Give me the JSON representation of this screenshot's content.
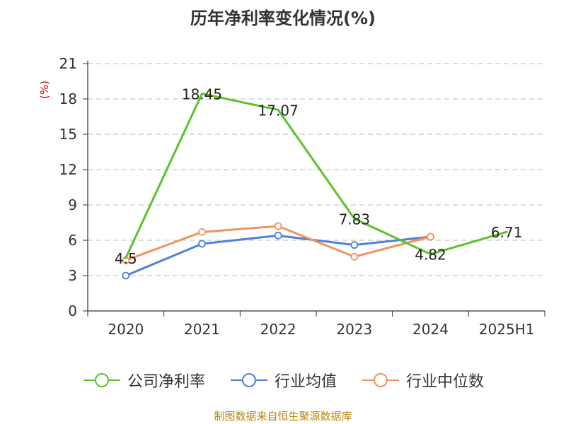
{
  "title": "历年净利率变化情况(%)",
  "source_note": "制图数据来自恒生聚源数据库",
  "colors": {
    "company": "#5cc22c",
    "industry_avg": "#4f7fdb",
    "industry_median": "#f4925e",
    "axis": "#333333",
    "grid": "#c8c8c8",
    "unit": "#cc0000"
  },
  "chart_data": {
    "type": "line",
    "title": "历年净利率变化情况(%)",
    "categories": [
      "2020",
      "2021",
      "2022",
      "2023",
      "2024",
      "2025H1"
    ],
    "ylabel": "(%)",
    "ylim": [
      0,
      21
    ],
    "yticks": [
      0,
      3,
      6,
      9,
      12,
      15,
      18,
      21
    ],
    "grid": true,
    "legend_position": "bottom",
    "series": [
      {
        "name": "公司净利率",
        "color": "#5cc22c",
        "values": [
          4.5,
          18.45,
          17.07,
          7.83,
          4.82,
          6.71
        ],
        "labels": [
          "4.5",
          "18.45",
          "17.07",
          "7.83",
          "4.82",
          "6.71"
        ],
        "markers": false
      },
      {
        "name": "行业均值",
        "color": "#4f7fdb",
        "values": [
          3.0,
          5.7,
          6.4,
          5.6,
          6.3,
          null
        ],
        "markers": true
      },
      {
        "name": "行业中位数",
        "color": "#f4925e",
        "values": [
          4.3,
          6.7,
          7.2,
          4.6,
          6.3,
          null
        ],
        "markers": true
      }
    ]
  }
}
